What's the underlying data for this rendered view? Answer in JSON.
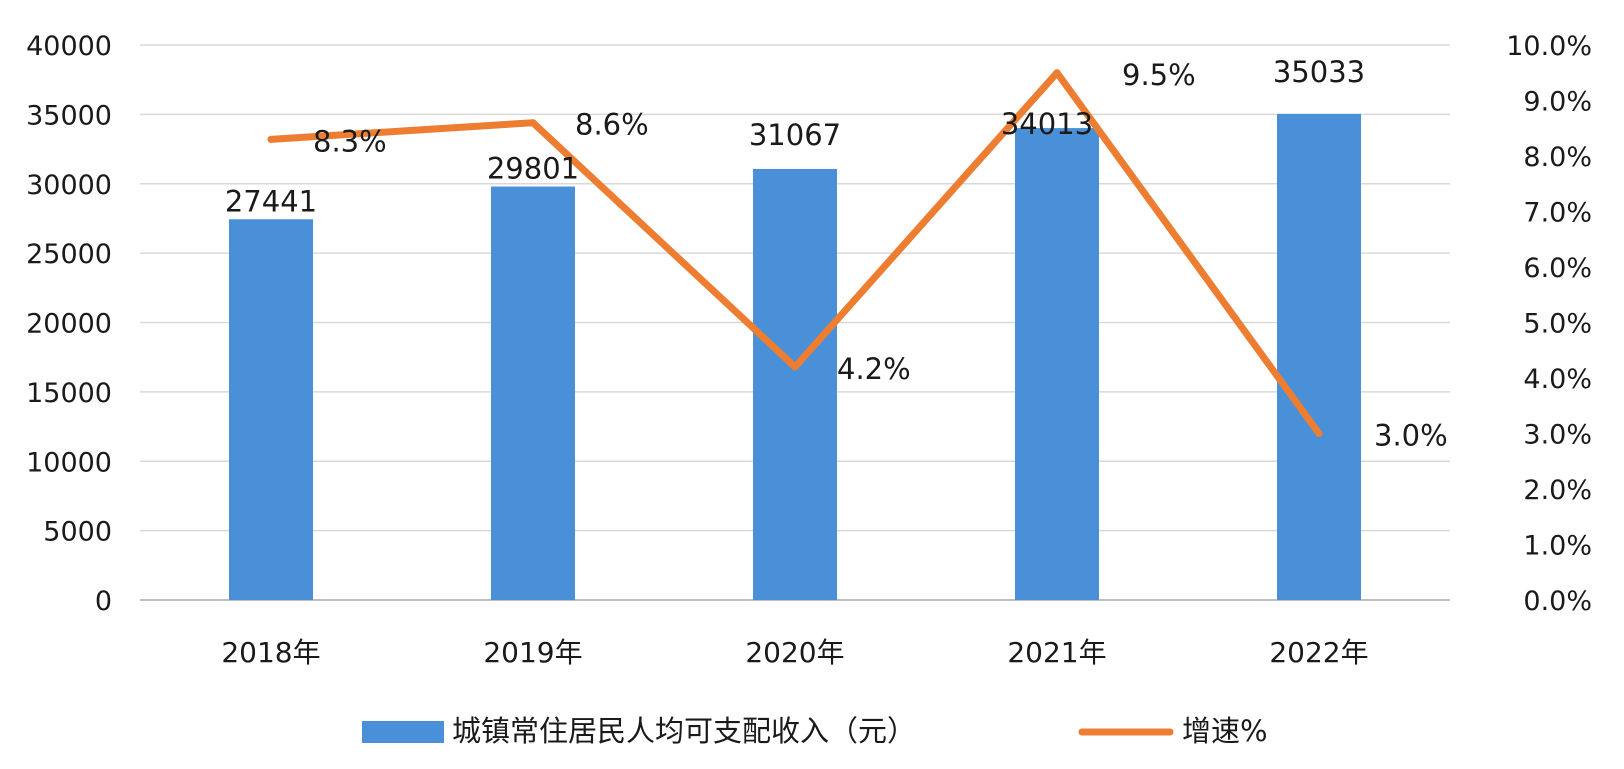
{
  "chart_data": {
    "type": "bar",
    "categories": [
      "2018年",
      "2019年",
      "2020年",
      "2021年",
      "2022年"
    ],
    "series": [
      {
        "name": "城镇常住居民人均可支配收入（元）",
        "type": "bar",
        "axis": "left",
        "values": [
          27441,
          29801,
          31067,
          34013,
          35033
        ],
        "labels": [
          "27441",
          "29801",
          "31067",
          "34013",
          "35033"
        ],
        "color": "#4a90d9"
      },
      {
        "name": "增速%",
        "type": "line",
        "axis": "right",
        "values": [
          8.3,
          8.6,
          4.2,
          9.5,
          3.0
        ],
        "labels": [
          "8.3%",
          "8.6%",
          "4.2%",
          "9.5%",
          "3.0%"
        ],
        "color": "#ed7d31"
      }
    ],
    "y_left": {
      "min": 0,
      "max": 40000,
      "ticks": [
        "0",
        "5000",
        "10000",
        "15000",
        "20000",
        "25000",
        "30000",
        "35000",
        "40000"
      ]
    },
    "y_right": {
      "min": 0,
      "max": 10,
      "ticks": [
        "0.0%",
        "1.0%",
        "2.0%",
        "3.0%",
        "4.0%",
        "5.0%",
        "6.0%",
        "7.0%",
        "8.0%",
        "9.0%",
        "10.0%"
      ]
    },
    "grid": true,
    "legend_position": "bottom",
    "colors": {
      "bar": "#4a90d9",
      "line": "#ed7d31",
      "grid": "#d9d9d9",
      "axis": "#bfbfbf",
      "text": "#1a1a1a"
    }
  }
}
